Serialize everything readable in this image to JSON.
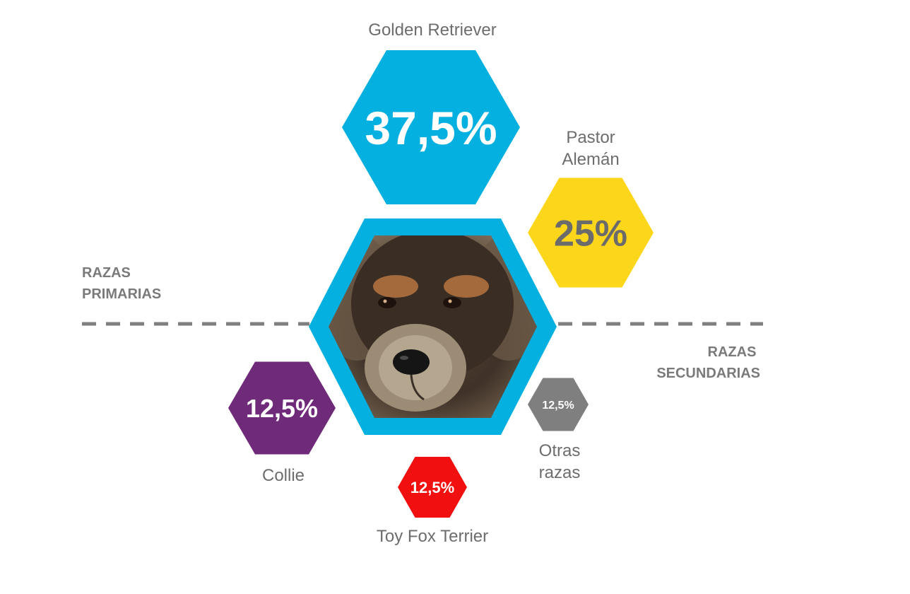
{
  "chart_data": {
    "type": "hexagon-infographic",
    "title": "",
    "primary_label": [
      "RAZAS",
      "PRIMARIAS"
    ],
    "secondary_label": [
      "RAZAS",
      "SECUNDARIAS"
    ],
    "center_image": "dog-portrait",
    "breeds": [
      {
        "name": [
          "Golden Retriever"
        ],
        "display": "37,5%",
        "value": 37.5,
        "group": "primaria",
        "color": "#03b0df",
        "text_color": "#ffffff"
      },
      {
        "name": [
          "Pastor",
          "Alemán"
        ],
        "display": "25%",
        "value": 25,
        "group": "primaria",
        "color": "#fbd61b",
        "text_color": "#6b6b6b"
      },
      {
        "name": [
          "Collie"
        ],
        "display": "12,5%",
        "value": 12.5,
        "group": "secundaria",
        "color": "#6f2a7a",
        "text_color": "#ffffff"
      },
      {
        "name": [
          "Toy Fox Terrier"
        ],
        "display": "12,5%",
        "value": 12.5,
        "group": "secundaria",
        "color": "#f20f0f",
        "text_color": "#ffffff"
      },
      {
        "name": [
          "Otras",
          "razas"
        ],
        "display": "12,5%",
        "value": 12.5,
        "group": "secundaria",
        "color": "#7f7f7f",
        "text_color": "#ffffff"
      }
    ],
    "colors": {
      "frame": "#04b0df",
      "divider": "#7f7f7f"
    }
  }
}
